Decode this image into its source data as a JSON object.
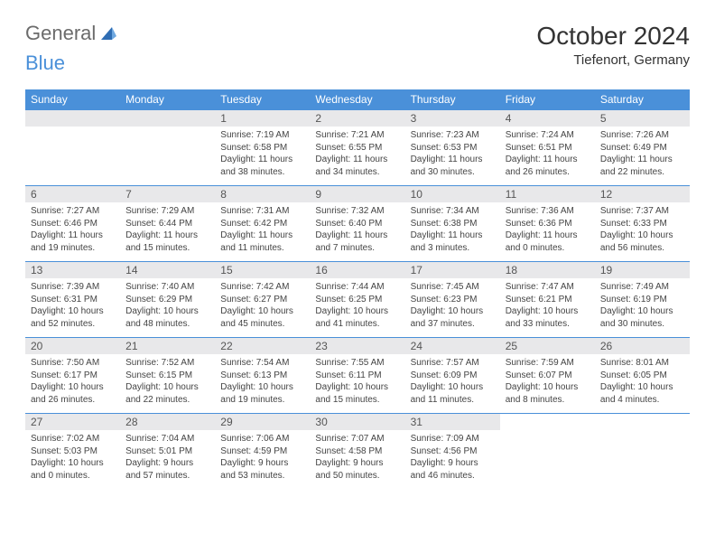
{
  "logo": {
    "part1": "General",
    "part2": "Blue"
  },
  "title": "October 2024",
  "location": "Tiefenort, Germany",
  "colors": {
    "header_bg": "#4a90d9",
    "header_text": "#ffffff",
    "daynum_bg": "#e8e8ea",
    "border": "#4a90d9",
    "text": "#333333",
    "logo_gray": "#6b6b6b",
    "logo_blue": "#4a90d9"
  },
  "weekdays": [
    "Sunday",
    "Monday",
    "Tuesday",
    "Wednesday",
    "Thursday",
    "Friday",
    "Saturday"
  ],
  "weeks": [
    [
      null,
      null,
      {
        "n": "1",
        "sr": "Sunrise: 7:19 AM",
        "ss": "Sunset: 6:58 PM",
        "dl": "Daylight: 11 hours and 38 minutes."
      },
      {
        "n": "2",
        "sr": "Sunrise: 7:21 AM",
        "ss": "Sunset: 6:55 PM",
        "dl": "Daylight: 11 hours and 34 minutes."
      },
      {
        "n": "3",
        "sr": "Sunrise: 7:23 AM",
        "ss": "Sunset: 6:53 PM",
        "dl": "Daylight: 11 hours and 30 minutes."
      },
      {
        "n": "4",
        "sr": "Sunrise: 7:24 AM",
        "ss": "Sunset: 6:51 PM",
        "dl": "Daylight: 11 hours and 26 minutes."
      },
      {
        "n": "5",
        "sr": "Sunrise: 7:26 AM",
        "ss": "Sunset: 6:49 PM",
        "dl": "Daylight: 11 hours and 22 minutes."
      }
    ],
    [
      {
        "n": "6",
        "sr": "Sunrise: 7:27 AM",
        "ss": "Sunset: 6:46 PM",
        "dl": "Daylight: 11 hours and 19 minutes."
      },
      {
        "n": "7",
        "sr": "Sunrise: 7:29 AM",
        "ss": "Sunset: 6:44 PM",
        "dl": "Daylight: 11 hours and 15 minutes."
      },
      {
        "n": "8",
        "sr": "Sunrise: 7:31 AM",
        "ss": "Sunset: 6:42 PM",
        "dl": "Daylight: 11 hours and 11 minutes."
      },
      {
        "n": "9",
        "sr": "Sunrise: 7:32 AM",
        "ss": "Sunset: 6:40 PM",
        "dl": "Daylight: 11 hours and 7 minutes."
      },
      {
        "n": "10",
        "sr": "Sunrise: 7:34 AM",
        "ss": "Sunset: 6:38 PM",
        "dl": "Daylight: 11 hours and 3 minutes."
      },
      {
        "n": "11",
        "sr": "Sunrise: 7:36 AM",
        "ss": "Sunset: 6:36 PM",
        "dl": "Daylight: 11 hours and 0 minutes."
      },
      {
        "n": "12",
        "sr": "Sunrise: 7:37 AM",
        "ss": "Sunset: 6:33 PM",
        "dl": "Daylight: 10 hours and 56 minutes."
      }
    ],
    [
      {
        "n": "13",
        "sr": "Sunrise: 7:39 AM",
        "ss": "Sunset: 6:31 PM",
        "dl": "Daylight: 10 hours and 52 minutes."
      },
      {
        "n": "14",
        "sr": "Sunrise: 7:40 AM",
        "ss": "Sunset: 6:29 PM",
        "dl": "Daylight: 10 hours and 48 minutes."
      },
      {
        "n": "15",
        "sr": "Sunrise: 7:42 AM",
        "ss": "Sunset: 6:27 PM",
        "dl": "Daylight: 10 hours and 45 minutes."
      },
      {
        "n": "16",
        "sr": "Sunrise: 7:44 AM",
        "ss": "Sunset: 6:25 PM",
        "dl": "Daylight: 10 hours and 41 minutes."
      },
      {
        "n": "17",
        "sr": "Sunrise: 7:45 AM",
        "ss": "Sunset: 6:23 PM",
        "dl": "Daylight: 10 hours and 37 minutes."
      },
      {
        "n": "18",
        "sr": "Sunrise: 7:47 AM",
        "ss": "Sunset: 6:21 PM",
        "dl": "Daylight: 10 hours and 33 minutes."
      },
      {
        "n": "19",
        "sr": "Sunrise: 7:49 AM",
        "ss": "Sunset: 6:19 PM",
        "dl": "Daylight: 10 hours and 30 minutes."
      }
    ],
    [
      {
        "n": "20",
        "sr": "Sunrise: 7:50 AM",
        "ss": "Sunset: 6:17 PM",
        "dl": "Daylight: 10 hours and 26 minutes."
      },
      {
        "n": "21",
        "sr": "Sunrise: 7:52 AM",
        "ss": "Sunset: 6:15 PM",
        "dl": "Daylight: 10 hours and 22 minutes."
      },
      {
        "n": "22",
        "sr": "Sunrise: 7:54 AM",
        "ss": "Sunset: 6:13 PM",
        "dl": "Daylight: 10 hours and 19 minutes."
      },
      {
        "n": "23",
        "sr": "Sunrise: 7:55 AM",
        "ss": "Sunset: 6:11 PM",
        "dl": "Daylight: 10 hours and 15 minutes."
      },
      {
        "n": "24",
        "sr": "Sunrise: 7:57 AM",
        "ss": "Sunset: 6:09 PM",
        "dl": "Daylight: 10 hours and 11 minutes."
      },
      {
        "n": "25",
        "sr": "Sunrise: 7:59 AM",
        "ss": "Sunset: 6:07 PM",
        "dl": "Daylight: 10 hours and 8 minutes."
      },
      {
        "n": "26",
        "sr": "Sunrise: 8:01 AM",
        "ss": "Sunset: 6:05 PM",
        "dl": "Daylight: 10 hours and 4 minutes."
      }
    ],
    [
      {
        "n": "27",
        "sr": "Sunrise: 7:02 AM",
        "ss": "Sunset: 5:03 PM",
        "dl": "Daylight: 10 hours and 0 minutes."
      },
      {
        "n": "28",
        "sr": "Sunrise: 7:04 AM",
        "ss": "Sunset: 5:01 PM",
        "dl": "Daylight: 9 hours and 57 minutes."
      },
      {
        "n": "29",
        "sr": "Sunrise: 7:06 AM",
        "ss": "Sunset: 4:59 PM",
        "dl": "Daylight: 9 hours and 53 minutes."
      },
      {
        "n": "30",
        "sr": "Sunrise: 7:07 AM",
        "ss": "Sunset: 4:58 PM",
        "dl": "Daylight: 9 hours and 50 minutes."
      },
      {
        "n": "31",
        "sr": "Sunrise: 7:09 AM",
        "ss": "Sunset: 4:56 PM",
        "dl": "Daylight: 9 hours and 46 minutes."
      },
      null,
      null
    ]
  ]
}
